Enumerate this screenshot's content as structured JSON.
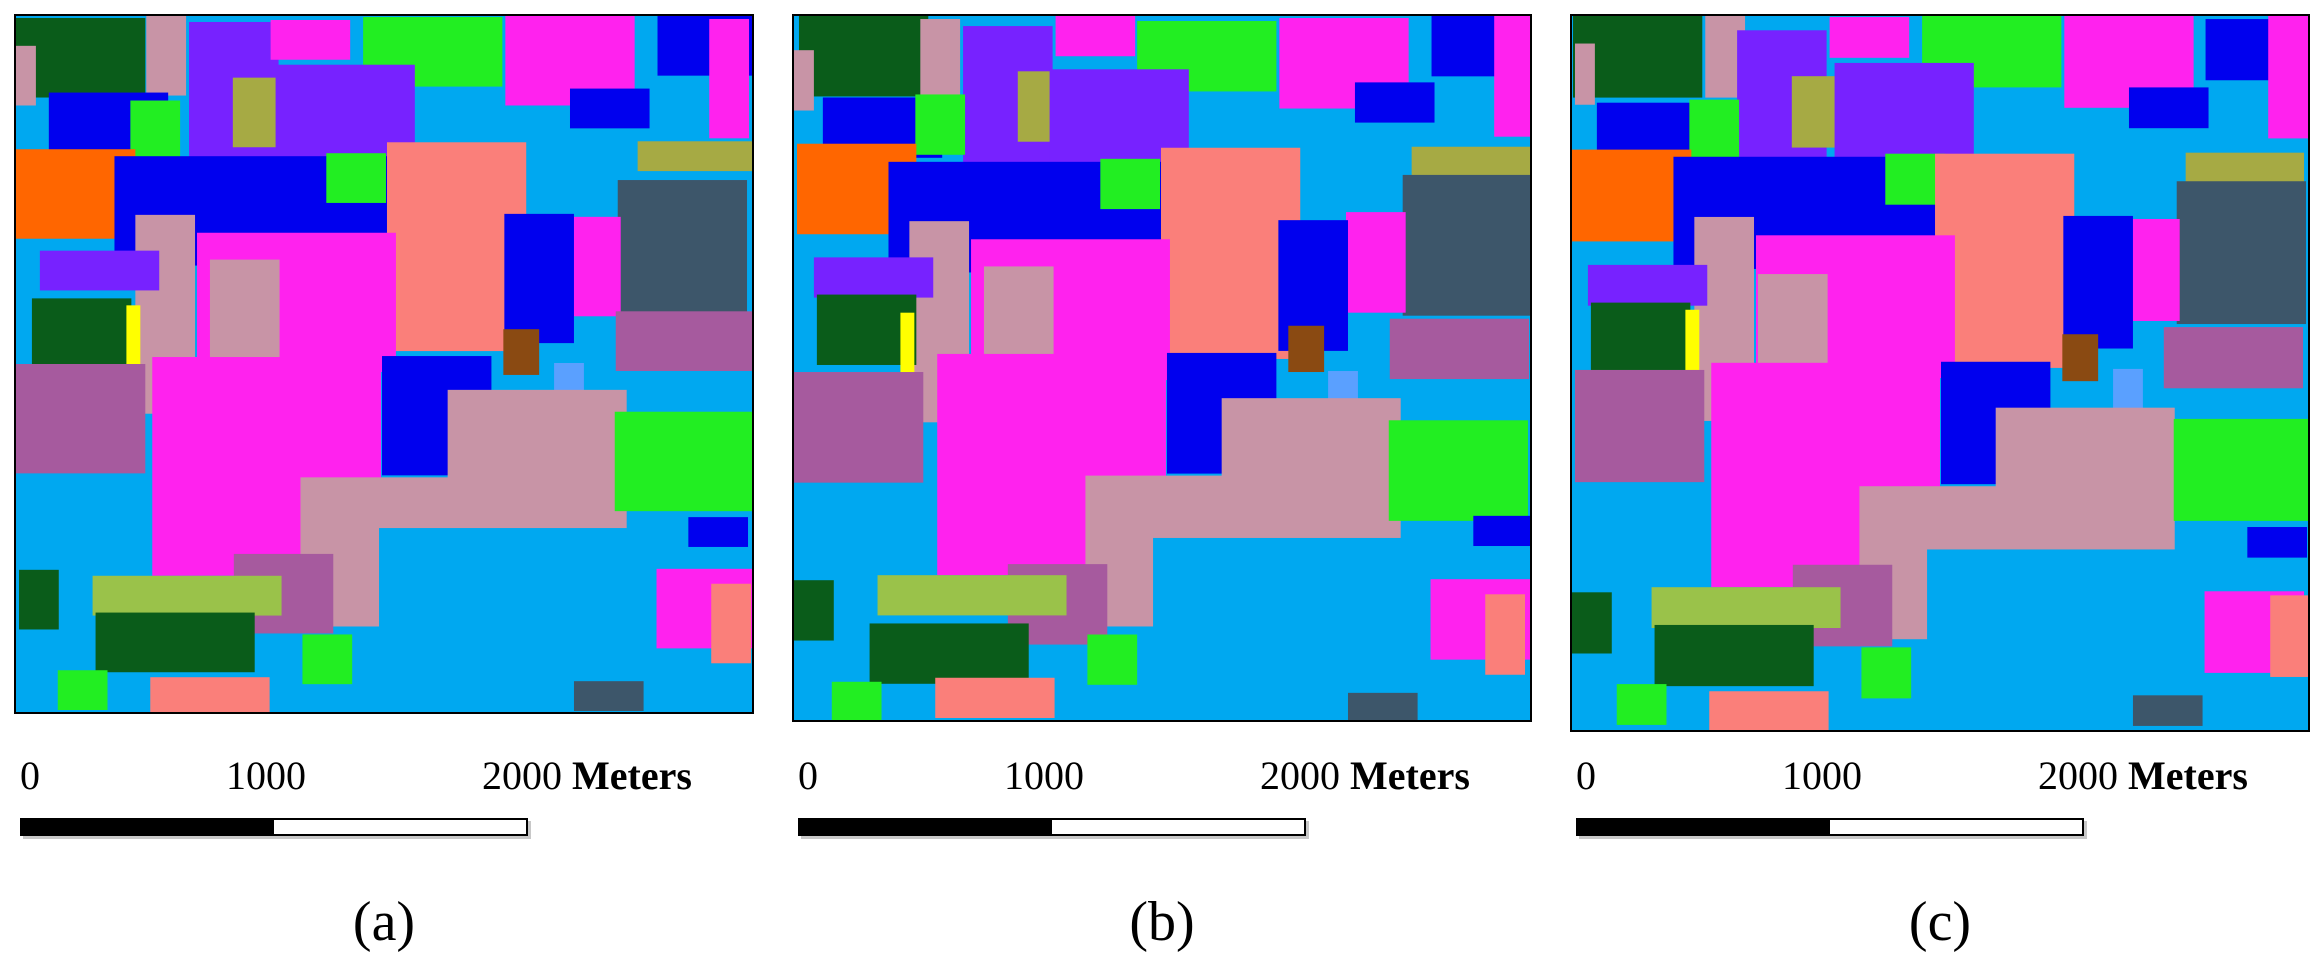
{
  "panels": [
    {
      "caption": "(a)",
      "scale": {
        "tick_0": "0",
        "tick_1": "1000",
        "tick_2": "2000",
        "unit": "Meters"
      }
    },
    {
      "caption": "(b)",
      "scale": {
        "tick_0": "0",
        "tick_1": "1000",
        "tick_2": "2000",
        "unit": "Meters"
      }
    },
    {
      "caption": "(c)",
      "scale": {
        "tick_0": "0",
        "tick_1": "1000",
        "tick_2": "2000",
        "unit": "Meters"
      }
    }
  ],
  "class_colors": {
    "dark_green": "#0a5c1a",
    "magenta": "#ff22ee",
    "bright_green": "#22ee22",
    "blue": "#0000ee",
    "purple": "#7722ff",
    "orange": "#ff6600",
    "salmon": "#fa7f7a",
    "mauve": "#c894a6",
    "olive": "#a6aa44",
    "sky_blue": "#00a8f0",
    "slate": "#3d566a",
    "plum": "#a65a9e",
    "brown": "#8a4a12",
    "yellow": "#ffff00",
    "light_olive": "#9ac24a",
    "light_blue": "#5aa0ff"
  }
}
